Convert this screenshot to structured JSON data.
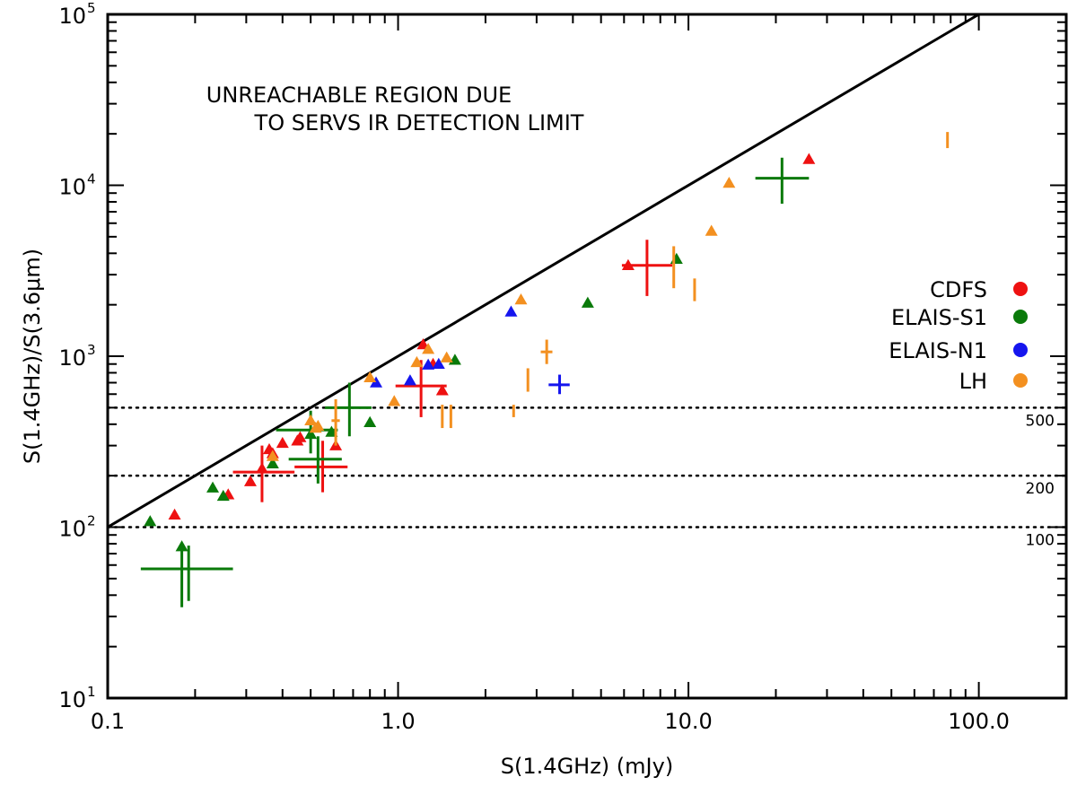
{
  "chart_data": {
    "type": "scatter",
    "title": "",
    "xlabel": "S(1.4GHz) (mJy)",
    "ylabel": "S(1.4GHz)/S(3.6μm)",
    "xscale": "log",
    "yscale": "log",
    "xlim": [
      0.1,
      200
    ],
    "ylim": [
      10,
      100000
    ],
    "x_ticks": [
      {
        "v": 0.1,
        "label": "0.1"
      },
      {
        "v": 1,
        "label": "1.0"
      },
      {
        "v": 10,
        "label": "10.0"
      },
      {
        "v": 100,
        "label": "100.0"
      }
    ],
    "y_ticks": [
      {
        "v": 10,
        "base": "10",
        "exp": "1"
      },
      {
        "v": 100,
        "base": "10",
        "exp": "2"
      },
      {
        "v": 1000,
        "base": "10",
        "exp": "3"
      },
      {
        "v": 10000,
        "base": "10",
        "exp": "4"
      },
      {
        "v": 100000,
        "base": "10",
        "exp": "5"
      }
    ],
    "annotation_lines": [
      "UNREACHABLE REGION DUE",
      "TO SERVS IR DETECTION LIMIT"
    ],
    "detection_limit_line": {
      "x": [
        0.1,
        100
      ],
      "y": [
        100,
        100000
      ]
    },
    "reference_lines": [
      {
        "value": 500,
        "label": "500"
      },
      {
        "value": 200,
        "label": "200"
      },
      {
        "value": 100,
        "label": "100"
      }
    ],
    "legend": {
      "position": "right",
      "entries": [
        {
          "name": "CDFS",
          "color": "#ee1111"
        },
        {
          "name": "ELAIS-S1",
          "color": "#0a7a0a"
        },
        {
          "name": "ELAIS-N1",
          "color": "#1515ee"
        },
        {
          "name": "LH",
          "color": "#f39020"
        }
      ]
    },
    "series": [
      {
        "name": "CDFS",
        "color": "#ee1111",
        "triangles": [
          [
            0.17,
            118
          ],
          [
            0.26,
            155
          ],
          [
            0.31,
            185
          ],
          [
            0.34,
            220
          ],
          [
            0.36,
            285
          ],
          [
            0.37,
            270
          ],
          [
            0.4,
            310
          ],
          [
            0.45,
            320
          ],
          [
            0.46,
            335
          ],
          [
            0.61,
            300
          ],
          [
            1.22,
            1170
          ],
          [
            1.32,
            900
          ],
          [
            1.42,
            630
          ],
          [
            6.2,
            3400
          ],
          [
            26,
            14200
          ]
        ],
        "crosses": [
          {
            "x": 0.34,
            "y": 210,
            "dx": [
              0.27,
              0.44
            ],
            "dy": [
              140,
              300
            ]
          },
          {
            "x": 0.55,
            "y": 225,
            "dx": [
              0.44,
              0.67
            ],
            "dy": [
              160,
              320
            ]
          },
          {
            "x": 1.2,
            "y": 670,
            "dx": [
              0.98,
              1.47
            ],
            "dy": [
              440,
              950
            ]
          },
          {
            "x": 7.2,
            "y": 3400,
            "dx": [
              5.9,
              8.8
            ],
            "dy": [
              2250,
              4800
            ]
          }
        ],
        "bars": []
      },
      {
        "name": "ELAIS-S1",
        "color": "#0a7a0a",
        "triangles": [
          [
            0.14,
            108
          ],
          [
            0.18,
            77
          ],
          [
            0.23,
            170
          ],
          [
            0.25,
            152
          ],
          [
            0.37,
            235
          ],
          [
            0.5,
            350
          ],
          [
            0.59,
            360
          ],
          [
            0.8,
            410
          ],
          [
            1.57,
            950
          ],
          [
            4.5,
            2050
          ],
          [
            9.1,
            3700
          ]
        ],
        "crosses": [
          {
            "x": 0.18,
            "y": 57,
            "dx": [
              0.13,
              0.27
            ],
            "dy": [
              34,
              78
            ]
          },
          {
            "x": 0.19,
            "y": 57,
            "dx": [
              0.17,
              0.21
            ],
            "dy": [
              37,
              78
            ]
          },
          {
            "x": 0.5,
            "y": 370,
            "dx": [
              0.38,
              0.62
            ],
            "dy": [
              270,
              480
            ]
          },
          {
            "x": 0.53,
            "y": 250,
            "dx": [
              0.42,
              0.64
            ],
            "dy": [
              180,
              340
            ]
          },
          {
            "x": 0.68,
            "y": 500,
            "dx": [
              0.56,
              0.81
            ],
            "dy": [
              340,
              700
            ]
          },
          {
            "x": 21,
            "y": 11000,
            "dx": [
              17,
              26
            ],
            "dy": [
              7800,
              14500
            ]
          }
        ],
        "bars": []
      },
      {
        "name": "ELAIS-N1",
        "color": "#1515ee",
        "triangles": [
          [
            0.84,
            700
          ],
          [
            1.1,
            720
          ],
          [
            1.27,
            890
          ],
          [
            1.38,
            900
          ],
          [
            2.45,
            1820
          ]
        ],
        "crosses": [
          {
            "x": 3.6,
            "y": 680,
            "dx": [
              3.3,
              3.9
            ],
            "dy": [
              600,
              780
            ]
          }
        ],
        "bars": []
      },
      {
        "name": "LH",
        "color": "#f39020",
        "triangles": [
          [
            0.37,
            260
          ],
          [
            0.5,
            420
          ],
          [
            0.52,
            380
          ],
          [
            0.53,
            390
          ],
          [
            0.8,
            750
          ],
          [
            0.97,
            545
          ],
          [
            1.16,
            920
          ],
          [
            1.27,
            1100
          ],
          [
            1.47,
            980
          ],
          [
            2.65,
            2140
          ],
          [
            12,
            5400
          ],
          [
            13.8,
            10300
          ]
        ],
        "crosses": [
          {
            "x": 0.61,
            "y": 420,
            "dx": [
              0.59,
              0.63
            ],
            "dy": [
              300,
              560
            ]
          },
          {
            "x": 3.25,
            "y": 1060,
            "dx": [
              3.1,
              3.4
            ],
            "dy": [
              900,
              1250
            ]
          }
        ],
        "bars": [
          {
            "x": 1.42,
            "dy": [
              380,
              520
            ]
          },
          {
            "x": 1.52,
            "dy": [
              380,
              520
            ]
          },
          {
            "x": 2.5,
            "dy": [
              440,
              520
            ]
          },
          {
            "x": 2.8,
            "dy": [
              620,
              850
            ]
          },
          {
            "x": 8.9,
            "dy": [
              2500,
              4400
            ]
          },
          {
            "x": 10.5,
            "dy": [
              2100,
              2850
            ]
          },
          {
            "x": 78,
            "dy": [
              16500,
              20500
            ]
          }
        ]
      }
    ]
  }
}
